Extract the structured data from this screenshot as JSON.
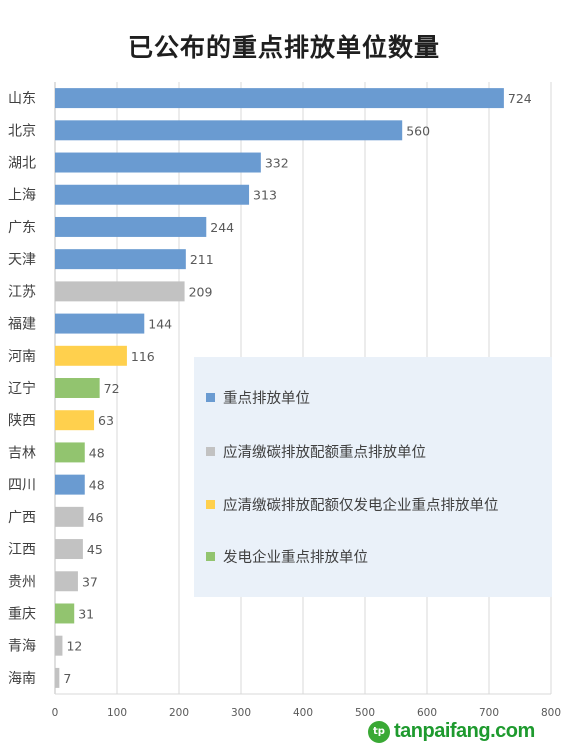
{
  "chart_data": {
    "type": "bar",
    "orientation": "horizontal",
    "title": "已公布的重点排放单位数量",
    "xlim": [
      0,
      800
    ],
    "xticks": [
      0,
      100,
      200,
      300,
      400,
      500,
      600,
      700,
      800
    ],
    "grid": "vertical",
    "legend_position": "bottom-right",
    "categories": [
      "山东",
      "北京",
      "湖北",
      "上海",
      "广东",
      "天津",
      "江苏",
      "福建",
      "河南",
      "辽宁",
      "陕西",
      "吉林",
      "四川",
      "广西",
      "江西",
      "贵州",
      "重庆",
      "青海",
      "海南"
    ],
    "values": [
      724,
      560,
      332,
      313,
      244,
      211,
      209,
      144,
      116,
      72,
      63,
      48,
      48,
      46,
      45,
      37,
      31,
      12,
      7
    ],
    "groups": [
      "重点排放单位",
      "重点排放单位",
      "重点排放单位",
      "重点排放单位",
      "重点排放单位",
      "重点排放单位",
      "应清缴碳排放配额重点排放单位",
      "重点排放单位",
      "应清缴碳排放配额仅发电企业重点排放单位",
      "发电企业重点排放单位",
      "应清缴碳排放配额仅发电企业重点排放单位",
      "发电企业重点排放单位",
      "重点排放单位",
      "应清缴碳排放配额重点排放单位",
      "应清缴碳排放配额重点排放单位",
      "应清缴碳排放配额重点排放单位",
      "发电企业重点排放单位",
      "应清缴碳排放配额重点排放单位",
      "应清缴碳排放配额重点排放单位"
    ],
    "legend": [
      {
        "name": "重点排放单位",
        "color": "#6a9bd1"
      },
      {
        "name": "应清缴碳排放配额重点排放单位",
        "color": "#c2c2c2"
      },
      {
        "name": "应清缴碳排放配额仅发电企业重点排放单位",
        "color": "#ffd04d"
      },
      {
        "name": "发电企业重点排放单位",
        "color": "#92c46f"
      }
    ]
  },
  "watermark": {
    "logo_text": "tp",
    "text": "tanpaifang.com"
  }
}
